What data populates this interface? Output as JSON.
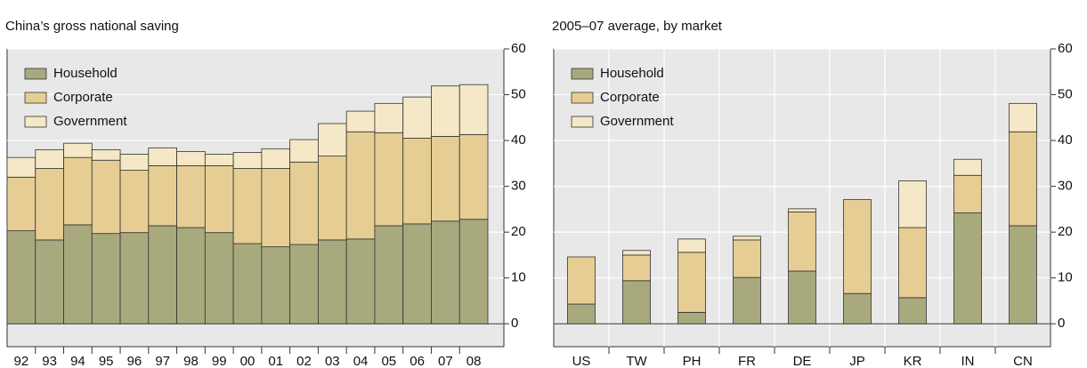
{
  "chart_data": [
    {
      "type": "stacked_bar",
      "title": "China’s gross national saving",
      "categories": [
        "92",
        "93",
        "94",
        "95",
        "96",
        "97",
        "98",
        "99",
        "00",
        "01",
        "02",
        "03",
        "04",
        "05",
        "06",
        "07",
        "08"
      ],
      "series": [
        {
          "name": "Household",
          "color": "#a8aa7e",
          "values": [
            20.3,
            18.3,
            21.6,
            19.7,
            19.9,
            21.4,
            21,
            19.9,
            17.5,
            16.8,
            17.3,
            18.3,
            18.5,
            21.4,
            21.8,
            22.4,
            22.8
          ]
        },
        {
          "name": "Corporate",
          "color": "#e6cd93",
          "values": [
            11.7,
            15.6,
            14.7,
            16,
            13.6,
            13.1,
            13.5,
            14.6,
            16.4,
            17.1,
            18,
            18.3,
            23.4,
            20.3,
            18.7,
            18.5,
            18.5
          ]
        },
        {
          "name": "Government",
          "color": "#f4e8c6",
          "values": [
            4.3,
            4.1,
            3.1,
            2.3,
            3.5,
            3.9,
            3.1,
            2.5,
            3.5,
            4.3,
            4.9,
            7.1,
            4.5,
            6.4,
            9,
            11,
            10.9
          ]
        }
      ],
      "ylim": [
        -5,
        60
      ],
      "yticks": [
        0,
        10,
        20,
        30,
        40,
        50,
        60
      ],
      "grid": true,
      "legend": "upper left"
    },
    {
      "type": "stacked_bar",
      "title": "2005–07 average, by market",
      "categories": [
        "US",
        "TW",
        "PH",
        "FR",
        "DE",
        "JP",
        "KR",
        "IN",
        "CN"
      ],
      "series": [
        {
          "name": "Household",
          "color": "#a8aa7e",
          "values": [
            4.3,
            9.4,
            2.5,
            10.1,
            11.5,
            6.6,
            5.7,
            24.2,
            21.4
          ]
        },
        {
          "name": "Corporate",
          "color": "#e6cd93",
          "values": [
            10.3,
            5.6,
            13.1,
            8.2,
            12.9,
            20.5,
            15.3,
            8.2,
            20.5
          ]
        },
        {
          "name": "Government",
          "color": "#f4e8c6",
          "values": [
            0,
            1,
            2.9,
            0.8,
            0.7,
            0,
            10.2,
            3.5,
            6.2
          ]
        }
      ],
      "ylim": [
        -5,
        60
      ],
      "yticks": [
        0,
        10,
        20,
        30,
        40,
        50,
        60
      ],
      "grid": true,
      "legend": "upper left"
    }
  ]
}
